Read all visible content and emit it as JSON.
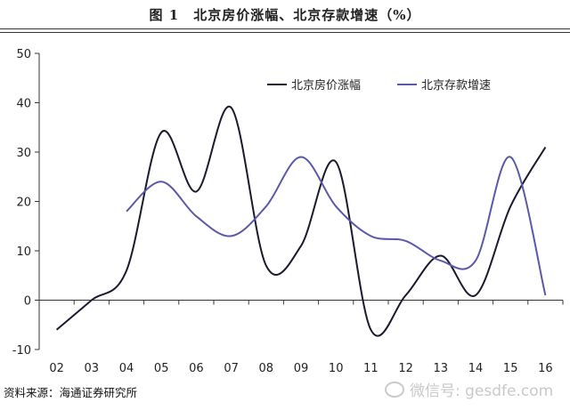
{
  "title": "图 1　北京房价涨幅、北京存款增速（%）",
  "source": "资料来源：海通证券研究所",
  "watermark": "微信号: gesdfe.com",
  "colors": {
    "house": "#1a1a2e",
    "deposit": "#5a58a8"
  },
  "chart_data": {
    "type": "line",
    "categories": [
      "02",
      "03",
      "04",
      "05",
      "06",
      "07",
      "08",
      "09",
      "10",
      "11",
      "12",
      "13",
      "14",
      "15",
      "16"
    ],
    "ylim": [
      -10,
      50
    ],
    "yticks": [
      -10,
      0,
      10,
      20,
      30,
      40,
      50
    ],
    "grid": false,
    "legend_position": "top-right",
    "series": [
      {
        "name": "北京房价涨幅",
        "color_key": "house",
        "values": [
          -6,
          0,
          6,
          34,
          22,
          39,
          7,
          11,
          28,
          -6,
          1,
          9,
          1,
          19,
          31
        ]
      },
      {
        "name": "北京存款增速",
        "color_key": "deposit",
        "values": [
          null,
          null,
          18,
          24,
          17,
          13,
          19,
          29,
          19,
          13,
          12,
          8,
          8,
          29,
          1
        ]
      }
    ]
  }
}
